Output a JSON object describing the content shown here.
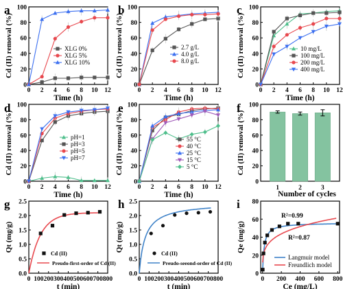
{
  "figure": {
    "panel_letters": [
      "a",
      "b",
      "c",
      "d",
      "e",
      "f",
      "g",
      "h",
      "i"
    ]
  },
  "chart_data": [
    {
      "panel": "a",
      "type": "line",
      "xlabel": "Time (h)",
      "ylabel": "Cd (II) removal (%)",
      "xlim": [
        0,
        12
      ],
      "ylim": [
        0,
        100
      ],
      "xticks": [
        0,
        2,
        4,
        6,
        8,
        10,
        12
      ],
      "yticks": [
        0,
        20,
        40,
        60,
        80,
        100
      ],
      "legend_position": "right",
      "series": [
        {
          "name": "XLG 0%",
          "color": "#555555",
          "marker": "square",
          "x": [
            0,
            2,
            4,
            6,
            8,
            10,
            12
          ],
          "values": [
            0,
            3,
            8,
            8,
            9,
            9,
            9
          ]
        },
        {
          "name": "XLG 5%",
          "color": "#e8484e",
          "marker": "circle",
          "x": [
            0,
            2,
            4,
            6,
            8,
            10,
            12
          ],
          "values": [
            0,
            10,
            59,
            74,
            81,
            86,
            86
          ]
        },
        {
          "name": "XLG 10%",
          "color": "#3b6ff0",
          "marker": "triangle",
          "x": [
            0,
            2,
            4,
            6,
            8,
            10,
            12
          ],
          "values": [
            0,
            84,
            92,
            94,
            95,
            95,
            96
          ]
        }
      ]
    },
    {
      "panel": "b",
      "type": "line",
      "xlabel": "Time (h)",
      "ylabel": "Cd (II) removal (%)",
      "xlim": [
        0,
        12
      ],
      "ylim": [
        0,
        100
      ],
      "xticks": [
        0,
        2,
        4,
        6,
        8,
        10,
        12
      ],
      "yticks": [
        0,
        20,
        40,
        60,
        80,
        100
      ],
      "legend_position": "bottom-right",
      "series": [
        {
          "name": "2.7 g/L",
          "color": "#555555",
          "marker": "square",
          "x": [
            0,
            2,
            4,
            6,
            8,
            10,
            12
          ],
          "values": [
            0,
            44,
            59,
            71,
            78,
            84,
            85
          ]
        },
        {
          "name": "4.0 g/L",
          "color": "#3b6ff0",
          "marker": "triangle",
          "x": [
            0,
            2,
            4,
            6,
            8,
            10,
            12
          ],
          "values": [
            0,
            79,
            87,
            89,
            91,
            92,
            93
          ]
        },
        {
          "name": "8.0 g/L",
          "color": "#e8484e",
          "marker": "circle",
          "x": [
            0,
            2,
            4,
            6,
            8,
            10,
            12
          ],
          "values": [
            0,
            70,
            84,
            88,
            90,
            90,
            91
          ]
        }
      ]
    },
    {
      "panel": "c",
      "type": "line",
      "xlabel": "Time (h)",
      "ylabel": "Cd (II) removal (%)",
      "xlim": [
        0,
        12
      ],
      "ylim": [
        0,
        100
      ],
      "xticks": [
        0,
        2,
        4,
        6,
        8,
        10,
        12
      ],
      "yticks": [
        0,
        20,
        40,
        60,
        80,
        100
      ],
      "legend_position": "bottom-right",
      "series": [
        {
          "name": "10 mg/L",
          "color": "#4fbf8c",
          "marker": "triangle",
          "x": [
            0,
            2,
            4,
            6,
            8,
            10,
            12
          ],
          "values": [
            0,
            63,
            78,
            91,
            92,
            94,
            95
          ]
        },
        {
          "name": "100 mg/L",
          "color": "#555555",
          "marker": "square",
          "x": [
            0,
            2,
            4,
            6,
            8,
            10,
            12
          ],
          "values": [
            0,
            68,
            85,
            89,
            92,
            92,
            93
          ]
        },
        {
          "name": "200 mg/L",
          "color": "#e8484e",
          "marker": "circle",
          "x": [
            0,
            2,
            4,
            6,
            8,
            10,
            12
          ],
          "values": [
            0,
            49,
            64,
            73,
            78,
            85,
            85
          ]
        },
        {
          "name": "400 mg/L",
          "color": "#3b6ff0",
          "marker": "triangle-down",
          "x": [
            0,
            2,
            4,
            6,
            8,
            10,
            12
          ],
          "values": [
            0,
            39,
            49,
            60,
            68,
            75,
            78
          ]
        }
      ]
    },
    {
      "panel": "d",
      "type": "line",
      "xlabel": "Time (h)",
      "ylabel": "Cd (II) removal (%)",
      "xlim": [
        0,
        12
      ],
      "ylim": [
        0,
        100
      ],
      "xticks": [
        0,
        2,
        4,
        6,
        8,
        10,
        12
      ],
      "yticks": [
        0,
        20,
        40,
        60,
        80,
        100
      ],
      "legend_position": "center-right",
      "series": [
        {
          "name": "pH=1",
          "color": "#4fbf8c",
          "marker": "triangle",
          "x": [
            0,
            2,
            4,
            6,
            8,
            10,
            12
          ],
          "values": [
            0,
            4,
            6,
            5,
            1,
            1,
            1
          ]
        },
        {
          "name": "pH=3",
          "color": "#555555",
          "marker": "square",
          "x": [
            0,
            2,
            4,
            6,
            8,
            10,
            12
          ],
          "values": [
            0,
            53,
            77,
            85,
            88,
            90,
            91
          ]
        },
        {
          "name": "pH=5",
          "color": "#e8484e",
          "marker": "circle",
          "x": [
            0,
            2,
            4,
            6,
            8,
            10,
            12
          ],
          "values": [
            0,
            62,
            82,
            88,
            91,
            93,
            94
          ]
        },
        {
          "name": "pH=7",
          "color": "#3b6ff0",
          "marker": "triangle-down",
          "x": [
            0,
            2,
            4,
            6,
            8,
            10,
            12
          ],
          "values": [
            0,
            68,
            85,
            90,
            92,
            93,
            95
          ]
        }
      ]
    },
    {
      "panel": "e",
      "type": "line",
      "xlabel": "Time (h)",
      "ylabel": "Cd (II) removal (%)",
      "xlim": [
        0,
        12
      ],
      "ylim": [
        0,
        100
      ],
      "xticks": [
        0,
        2,
        4,
        6,
        8,
        10,
        12
      ],
      "yticks": [
        0,
        20,
        40,
        60,
        80,
        100
      ],
      "legend_position": "bottom-right",
      "series": [
        {
          "name": "55 °C",
          "color": "#555555",
          "marker": "square",
          "x": [
            0,
            2,
            4,
            6,
            8,
            10,
            12
          ],
          "values": [
            0,
            66,
            83,
            87,
            92,
            94,
            95
          ]
        },
        {
          "name": "40 °C",
          "color": "#e8484e",
          "marker": "circle",
          "x": [
            0,
            2,
            4,
            6,
            8,
            10,
            12
          ],
          "values": [
            0,
            70,
            80,
            90,
            94,
            95,
            94
          ]
        },
        {
          "name": "25 °C",
          "color": "#3b6ff0",
          "marker": "triangle",
          "x": [
            0,
            2,
            4,
            6,
            8,
            10,
            12
          ],
          "values": [
            0,
            72,
            84,
            88,
            90,
            92,
            93
          ]
        },
        {
          "name": "15 °C",
          "color": "#a05ab8",
          "marker": "triangle-down",
          "x": [
            0,
            2,
            4,
            6,
            8,
            10,
            12
          ],
          "values": [
            0,
            55,
            76,
            81,
            86,
            91,
            86
          ]
        },
        {
          "name": "5 °C",
          "color": "#4fbf8c",
          "marker": "diamond",
          "x": [
            0,
            2,
            4,
            6,
            8,
            10,
            12
          ],
          "values": [
            0,
            54,
            63,
            55,
            61,
            64,
            72
          ]
        }
      ]
    },
    {
      "panel": "f",
      "type": "bar",
      "xlabel": "Number of cycles",
      "ylabel": "Cd (II) removal (%)",
      "ylim": [
        0,
        100
      ],
      "yticks": [
        0,
        20,
        40,
        60,
        80,
        100
      ],
      "categories": [
        "1",
        "2",
        "3"
      ],
      "values": [
        90,
        88,
        89
      ],
      "errors": [
        1.5,
        2,
        4
      ],
      "color": "#84c3a0"
    },
    {
      "panel": "g",
      "type": "scatter",
      "xlabel": "t (min)",
      "ylabel": "Qt (mg/g)",
      "xlim": [
        0,
        800
      ],
      "ylim": [
        0,
        2.5
      ],
      "xticks": [
        0,
        100,
        200,
        300,
        400,
        500,
        600,
        700,
        800
      ],
      "yticks": [
        0.0,
        0.5,
        1.0,
        1.5,
        2.0,
        2.5
      ],
      "legend_position": "bottom-right",
      "series": [
        {
          "name": "Cd (II)",
          "color": "#111111",
          "marker": "square",
          "x": [
            120,
            240,
            360,
            480,
            600,
            720
          ],
          "values": [
            1.38,
            1.65,
            2.02,
            2.08,
            2.1,
            2.13
          ]
        }
      ],
      "fit": {
        "name": "Preudo-first-order of Cd (II)",
        "color": "#e8484e",
        "qe": 2.1,
        "k1": 0.0085
      }
    },
    {
      "panel": "h",
      "type": "scatter",
      "xlabel": "t (min)",
      "ylabel": "Qt (mg/g)",
      "xlim": [
        0,
        800
      ],
      "ylim": [
        0,
        2.5
      ],
      "xticks": [
        0,
        100,
        200,
        300,
        400,
        500,
        600,
        700,
        800
      ],
      "yticks": [
        0.0,
        0.5,
        1.0,
        1.5,
        2.0,
        2.5
      ],
      "legend_position": "bottom-right",
      "series": [
        {
          "name": "Cd (II)",
          "color": "#111111",
          "marker": "circle",
          "x": [
            120,
            240,
            360,
            480,
            600,
            720
          ],
          "values": [
            1.38,
            1.65,
            2.02,
            2.08,
            2.1,
            2.13
          ]
        }
      ],
      "fit": {
        "name": "Preudo-seeond-order of Cd (II)",
        "color": "#3e82c8",
        "qe": 2.45,
        "k2": 0.0068
      }
    },
    {
      "panel": "i",
      "type": "scatter",
      "xlabel": "Ce (mg/L)",
      "ylabel": "Qe (mg/g)",
      "xlim": [
        -20,
        820
      ],
      "ylim": [
        0,
        80
      ],
      "xticks": [
        0,
        200,
        400,
        600,
        800
      ],
      "yticks": [
        0,
        20,
        40,
        60,
        80
      ],
      "legend_position": "bottom-right",
      "annotations": [
        "R²=0.99",
        "R²=0.87"
      ],
      "series": [
        {
          "name": "data",
          "color": "#111111",
          "marker": "square",
          "x": [
            2,
            10,
            25,
            50,
            100,
            180,
            270,
            380,
            800
          ],
          "values": [
            4,
            22,
            34,
            42,
            48,
            52,
            55,
            55,
            55
          ]
        }
      ],
      "fits": [
        {
          "name": "Langmuir model",
          "color": "#3e82c8",
          "qm": 56,
          "kl": 0.06
        },
        {
          "name": "Freundlich model",
          "color": "#e8484e",
          "kf": 12,
          "n": 4.1
        }
      ]
    }
  ]
}
